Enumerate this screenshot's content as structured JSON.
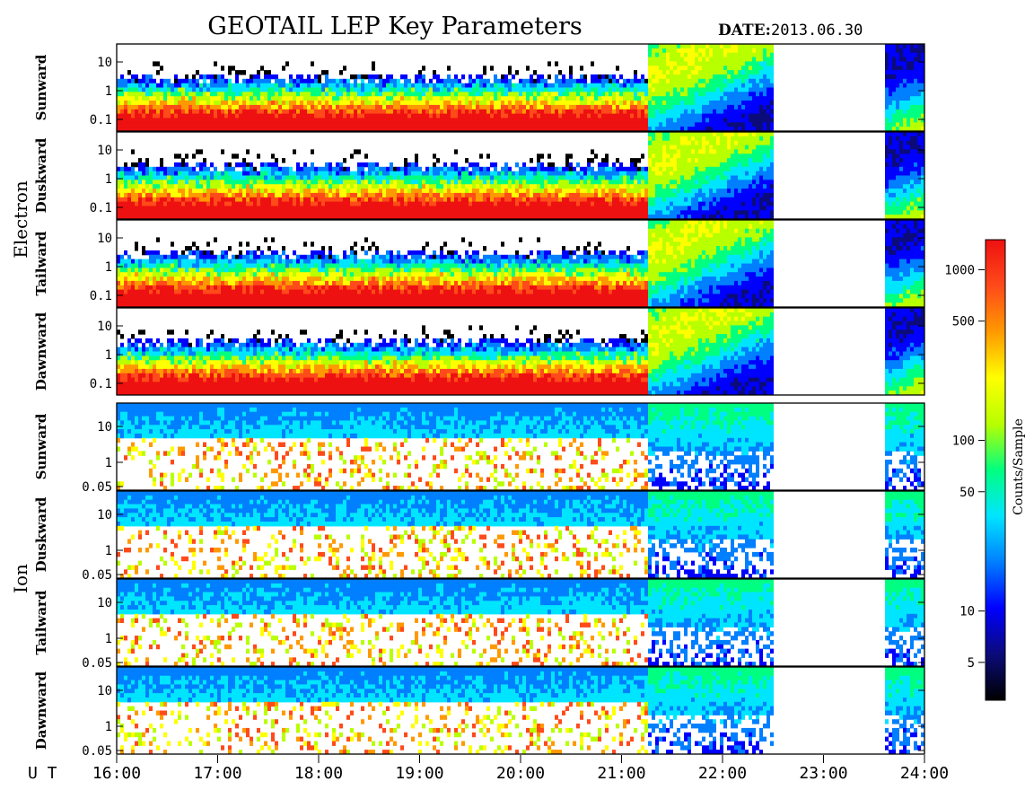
{
  "title": "GEOTAIL LEP Key Parameters",
  "date": {
    "label": "DATE:",
    "value": "2013.06.30"
  },
  "colors": {
    "scale": [
      "#000000",
      "#0b0b7a",
      "#0000ff",
      "#007fff",
      "#00e5ff",
      "#00ff80",
      "#b8ff00",
      "#ffff00",
      "#ff9900",
      "#ff4a1a",
      "#ee1111"
    ],
    "frame": "#000000",
    "background": "#ffffff"
  },
  "chart_data": {
    "type": "heatmap",
    "title": "GEOTAIL LEP Key Parameters",
    "x_axis": {
      "label": "U T",
      "range": [
        "16:00",
        "24:00"
      ],
      "ticks": [
        "16:00",
        "17:00",
        "18:00",
        "19:00",
        "20:00",
        "21:00",
        "22:00",
        "23:00",
        "24:00"
      ]
    },
    "groups": [
      {
        "name": "Electron",
        "y_scale": "log",
        "y_ticks": [
          "10",
          "1",
          "0.1"
        ],
        "panels": [
          "Sunward",
          "Duskward",
          "Tailward",
          "Dawnward"
        ]
      },
      {
        "name": "Ion",
        "y_scale": "log",
        "y_ticks": [
          "10",
          "1",
          "0.05"
        ],
        "panels": [
          "Sunward",
          "Duskward",
          "Tailward",
          "Dawnward"
        ]
      }
    ],
    "colorbar": {
      "label": "Counts/Sample",
      "scale": "log",
      "range": [
        3,
        1500
      ],
      "ticks": [
        1000,
        500,
        100,
        50,
        10,
        5
      ]
    },
    "data_gaps": [
      [
        "22:30",
        "23:35"
      ]
    ]
  }
}
